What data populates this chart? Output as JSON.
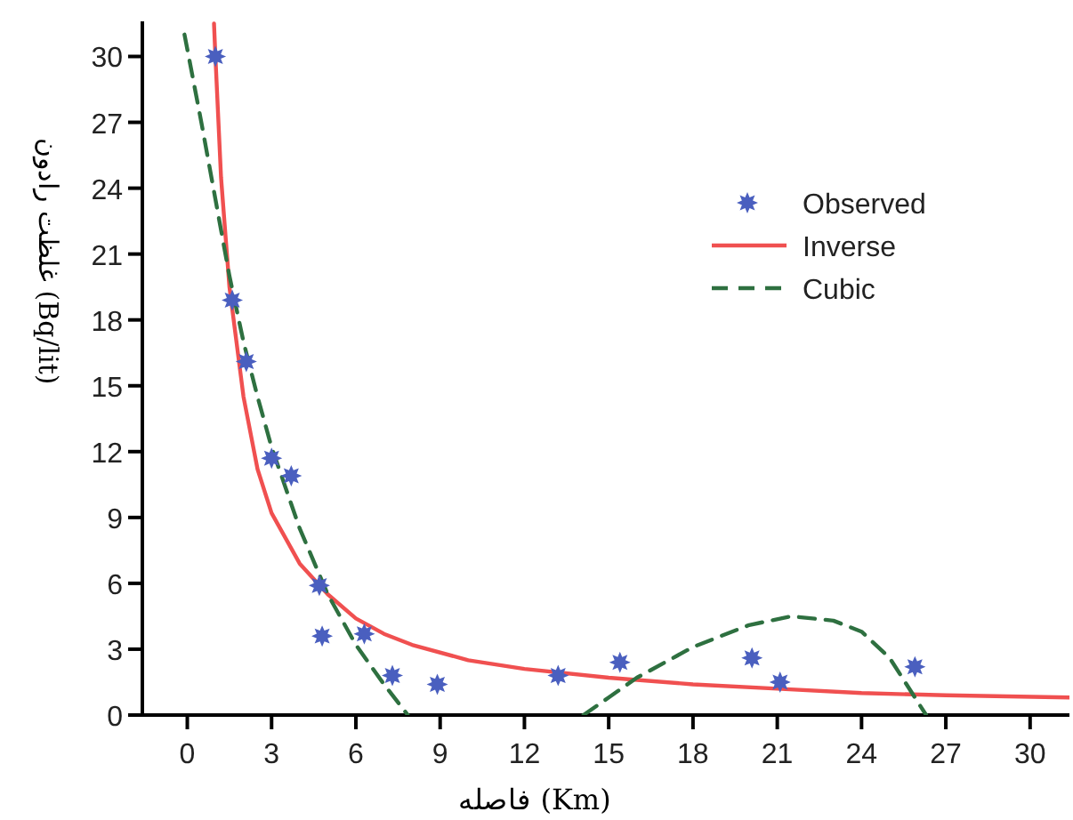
{
  "chart_data": {
    "type": "scatter",
    "xlabel": "فاصله (Km)",
    "ylabel": "غلظت رادون (Bq/lit)",
    "xlim": [
      -1.6,
      31.4
    ],
    "ylim": [
      0,
      31.6
    ],
    "xticks": [
      0,
      3,
      6,
      9,
      12,
      15,
      18,
      21,
      24,
      27,
      30
    ],
    "yticks": [
      0,
      3,
      6,
      9,
      12,
      15,
      18,
      21,
      24,
      27,
      30
    ],
    "grid": false,
    "legend": "top right",
    "series": [
      {
        "name": "Observed",
        "marker": "star",
        "color": "#4a5fbf",
        "x": [
          1.0,
          1.6,
          2.1,
          3.0,
          3.7,
          4.7,
          4.8,
          6.3,
          7.3,
          8.9,
          13.2,
          15.4,
          20.1,
          21.1,
          25.9
        ],
        "values": [
          30,
          18.9,
          16.1,
          11.7,
          10.9,
          5.9,
          3.6,
          3.7,
          1.8,
          1.4,
          1.8,
          2.4,
          2.6,
          1.5,
          2.2
        ]
      },
      {
        "name": "Inverse",
        "type": "line",
        "line_style": "solid",
        "color": "#f05050",
        "x": [
          0.95,
          1.0,
          1.2,
          1.5,
          2,
          2.5,
          3,
          4,
          5,
          6,
          7,
          8,
          10,
          12,
          15,
          18,
          21,
          24,
          27,
          31.4
        ],
        "values": [
          31.5,
          30,
          24.5,
          19.5,
          14.5,
          11.2,
          9.2,
          6.9,
          5.5,
          4.4,
          3.7,
          3.2,
          2.5,
          2.1,
          1.7,
          1.4,
          1.2,
          1.0,
          0.9,
          0.8
        ]
      },
      {
        "name": "Cubic",
        "type": "line",
        "line_style": "dashed",
        "color": "#2e7040",
        "x": [
          -0.1,
          0.5,
          1,
          1.5,
          2,
          2.5,
          3,
          4,
          5,
          6,
          7,
          7.85
        ],
        "values": [
          31,
          27,
          23.5,
          20,
          17,
          14.5,
          12.2,
          8.5,
          5.5,
          3.2,
          1.4,
          0
        ]
      },
      {
        "type": "line",
        "line_style": "dashed",
        "color": "#2e7040",
        "x": [
          14.1,
          15,
          16,
          18,
          20,
          21.5,
          23,
          24,
          25,
          26.3
        ],
        "values": [
          0,
          0.8,
          1.7,
          3.1,
          4.1,
          4.5,
          4.3,
          3.8,
          2.6,
          0
        ]
      }
    ]
  }
}
